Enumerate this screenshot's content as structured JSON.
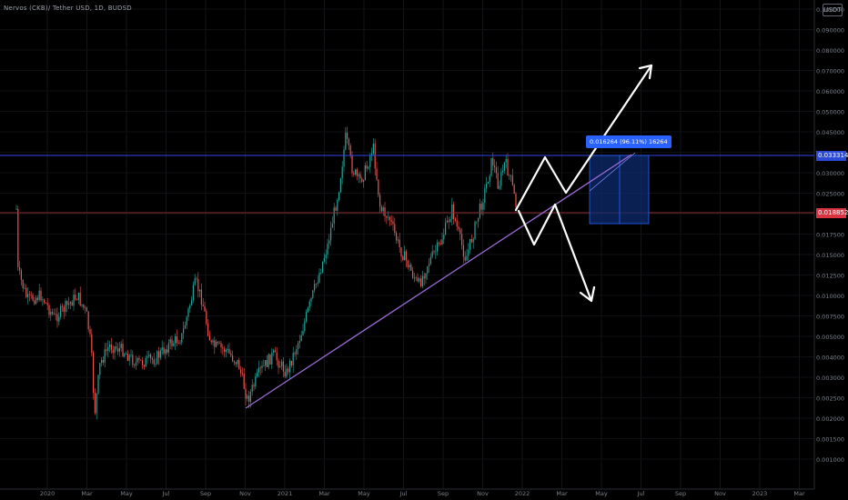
{
  "header": {
    "symbol_line": "Nervos (CKB)/ Tether USD, 1D, BUDSD",
    "corner_badge": "USDT"
  },
  "price_axis": {
    "labels": [
      "0.100000",
      "0.090000",
      "0.080000",
      "0.070000",
      "0.060000",
      "0.050000",
      "0.045000",
      "0.035000",
      "0.030000",
      "0.025000",
      "0.020000",
      "0.017500",
      "0.015000",
      "0.012500",
      "0.010000",
      "0.007500",
      "0.005000",
      "0.004000",
      "0.003000",
      "0.002500",
      "0.002000",
      "0.001500",
      "0.001000"
    ],
    "current_price_blue": "0.033314",
    "current_price_red": "0.018852"
  },
  "time_axis": {
    "labels": [
      "2020",
      "Mar",
      "May",
      "Jul",
      "Sep",
      "Nov",
      "2021",
      "Mar",
      "May",
      "Jul",
      "Sep",
      "Nov",
      "2022",
      "Mar",
      "May",
      "Jul",
      "Sep",
      "Nov",
      "2023",
      "Mar"
    ]
  },
  "measure_tool": {
    "label": "0.016264 (96.11%) 16264"
  },
  "colors": {
    "background": "#000000",
    "candle_up": "#26a69a",
    "candle_down": "#ef5350",
    "resistance_line": "#2f49e6",
    "support_line": "#9a6bd6",
    "current_price_line": "#8c2a31",
    "measure_box": "#0e2a6e",
    "projection_arrows": "#ffffff"
  },
  "drawing_tools": [
    "horizontal-line",
    "trend-line",
    "path-arrow",
    "price-range"
  ]
}
